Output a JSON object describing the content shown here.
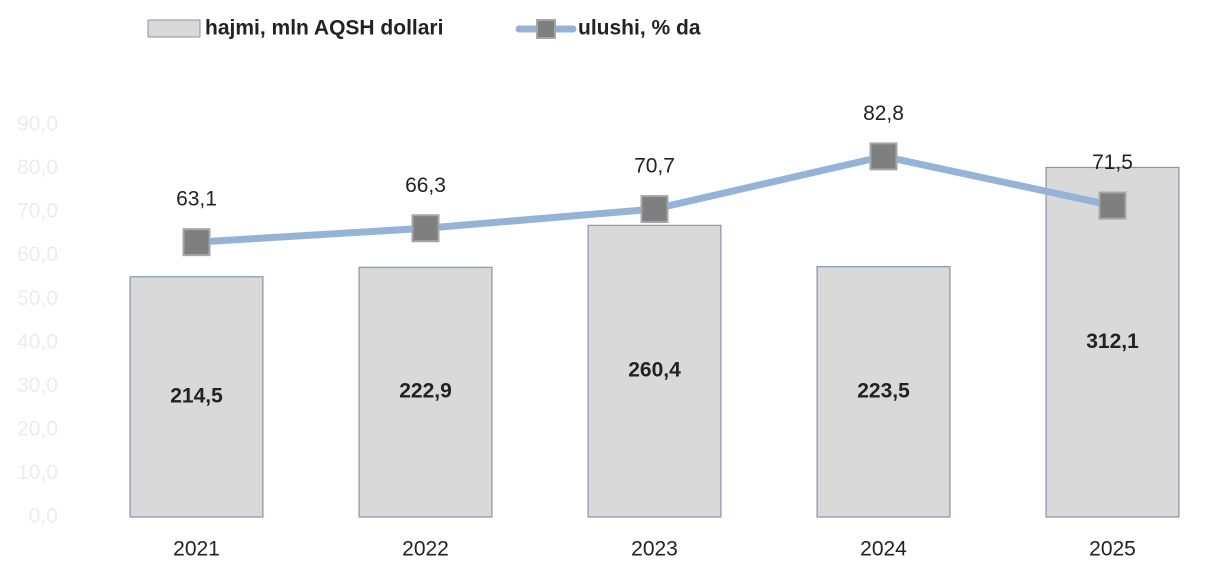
{
  "chart_data": {
    "type": "bar-line",
    "categories": [
      "2021",
      "2022",
      "2023",
      "2024",
      "2025"
    ],
    "series": [
      {
        "name": "hajmi, mln AQSH dollari",
        "type": "bar",
        "axis": "y2",
        "color": "#d9d9d9",
        "edge_color": "#8496b0",
        "values": [
          214.5,
          222.9,
          260.4,
          223.5,
          312.1
        ],
        "value_labels": [
          "214,5",
          "222,9",
          "260,4",
          "223,5",
          "312,1"
        ]
      },
      {
        "name": "ulushi, % da",
        "type": "line",
        "color": "#95b3d7",
        "marker_color": "#7f7f7f",
        "values": [
          63.1,
          66.3,
          70.7,
          82.8,
          71.5
        ],
        "value_labels": [
          "63,1",
          "66,3",
          "70,7",
          "82,8",
          "71,5"
        ]
      }
    ],
    "ylim": [
      0,
      90
    ],
    "yticks": [
      {
        "value": 0,
        "label": "0,0"
      },
      {
        "value": 10,
        "label": "10,0"
      },
      {
        "value": 20,
        "label": "20,0"
      },
      {
        "value": 30,
        "label": "30,0"
      },
      {
        "value": 40,
        "label": "40,0"
      },
      {
        "value": 50,
        "label": "50,0"
      },
      {
        "value": 60,
        "label": "60,0"
      },
      {
        "value": 70,
        "label": "70,0"
      },
      {
        "value": 80,
        "label": "80,0"
      },
      {
        "value": 90,
        "label": "90,0"
      }
    ],
    "y2lim": [
      0,
      350
    ],
    "grid": false,
    "legend": "top"
  }
}
